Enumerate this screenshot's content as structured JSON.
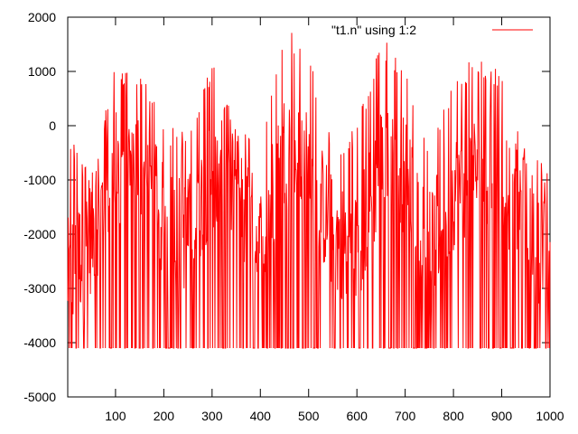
{
  "chart_data": {
    "type": "line",
    "title": "",
    "xlabel": "",
    "ylabel": "",
    "xlim": [
      1,
      1000
    ],
    "ylim": [
      -5000,
      2000
    ],
    "xticks": [
      100,
      200,
      300,
      400,
      500,
      600,
      700,
      800,
      900,
      1000
    ],
    "yticks": [
      2000,
      1000,
      0,
      -1000,
      -2000,
      -3000,
      -4000,
      -5000
    ],
    "grid": false,
    "legend": "top-right",
    "series": [
      {
        "name": "\"t1.n\" using 1:2",
        "color": "#ff0000",
        "x": [
          1,
          50,
          100,
          150,
          200,
          250,
          300,
          350,
          400,
          450,
          500,
          550,
          600,
          650,
          700,
          750,
          800,
          850,
          900,
          950,
          1000
        ],
        "min": [
          -4100,
          -4100,
          -4100,
          -4100,
          -4100,
          -4100,
          -4100,
          -4100,
          -4100,
          -4100,
          -4100,
          -4100,
          -4100,
          -4100,
          -4100,
          -4100,
          -4100,
          -4100,
          -4100,
          -4100,
          -4100
        ],
        "max": [
          0,
          -900,
          1150,
          1100,
          0,
          -100,
          1300,
          0,
          -200,
          1950,
          1300,
          -300,
          0,
          1650,
          1200,
          -400,
          950,
          1350,
          1000,
          -500,
          -700
        ],
        "mid": [
          -2800,
          -2000,
          -800,
          -600,
          -1800,
          -2000,
          -800,
          -1300,
          -2200,
          -400,
          -800,
          -2000,
          -2300,
          -700,
          -900,
          -2300,
          -1200,
          -800,
          -1000,
          -1700,
          -2600
        ]
      }
    ]
  }
}
